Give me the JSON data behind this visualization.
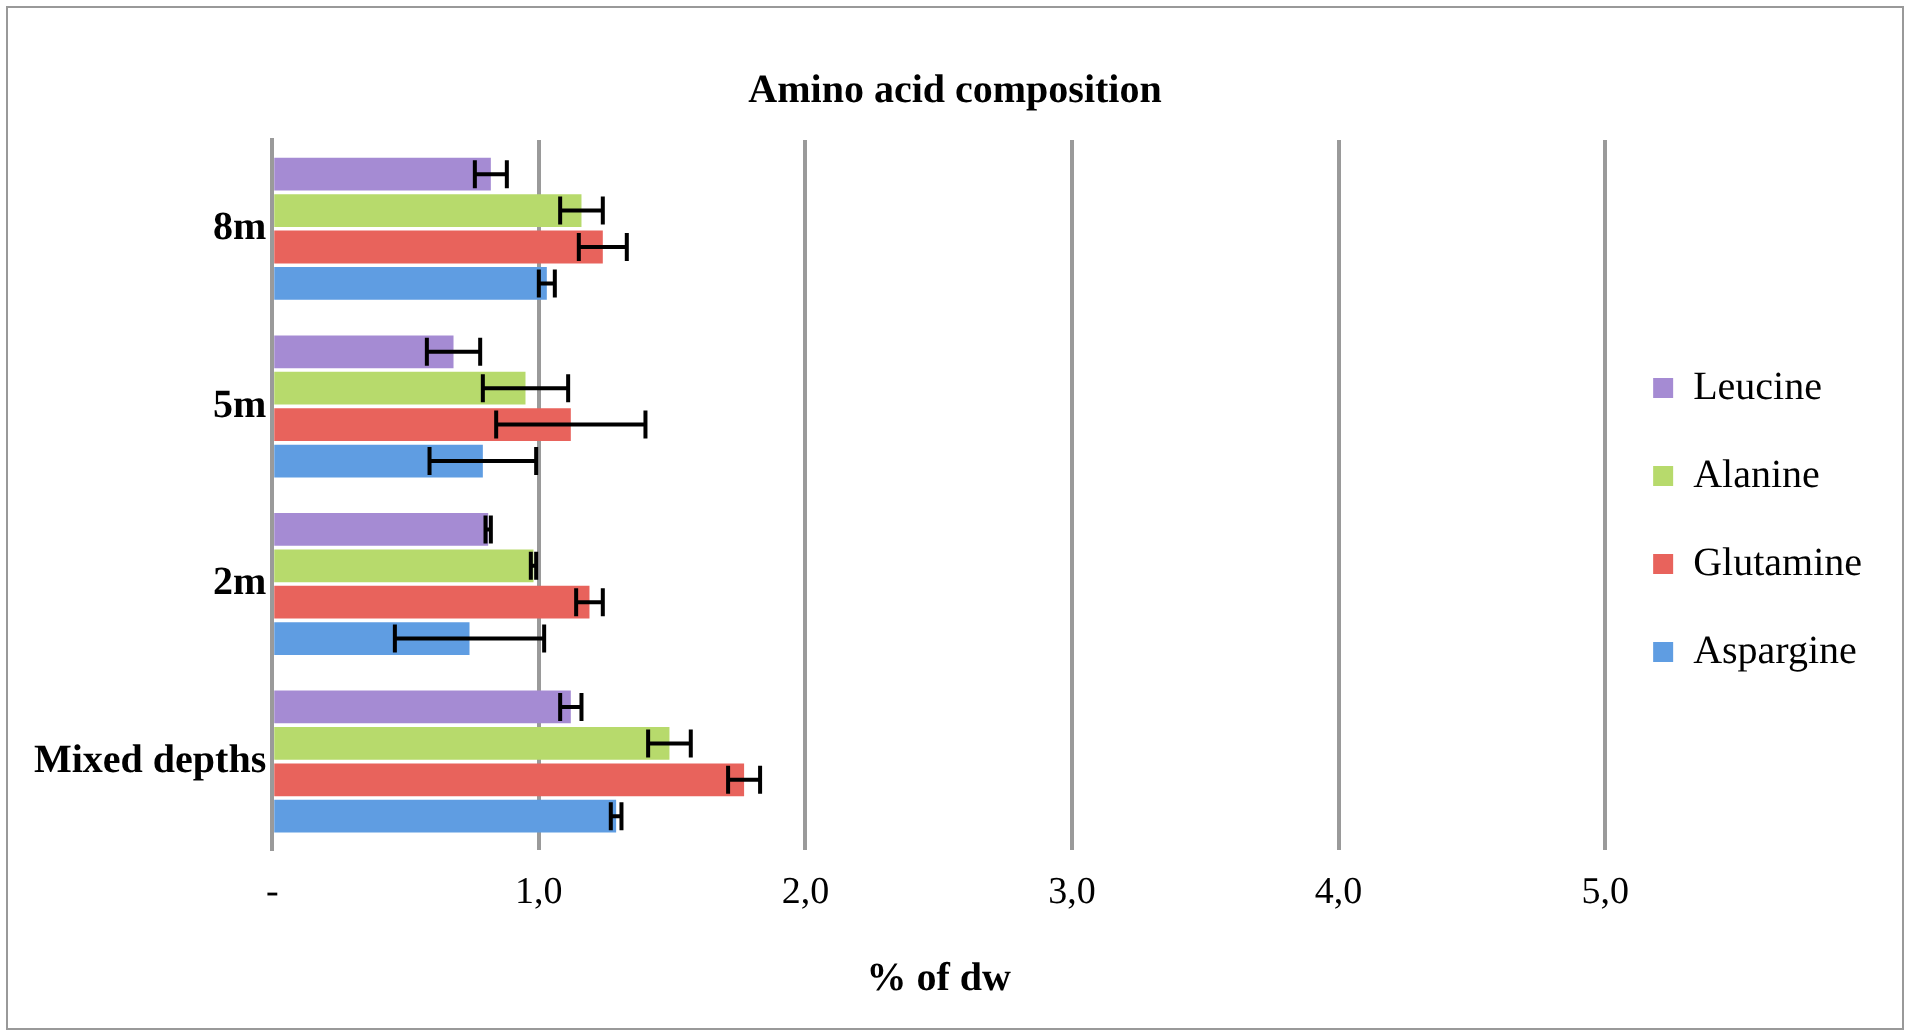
{
  "chart_data": {
    "type": "bar",
    "orientation": "horizontal",
    "title": "Amino acid composition",
    "xlabel": "% of dw",
    "categories": [
      "8m",
      "5m",
      "2m",
      "Mixed depths"
    ],
    "series": [
      {
        "name": "Leucine",
        "color": "#a58bd3",
        "values": [
          0.82,
          0.68,
          0.81,
          1.12
        ],
        "errors": [
          0.06,
          0.1,
          0.01,
          0.04
        ]
      },
      {
        "name": "Alanine",
        "color": "#b7da6c",
        "values": [
          1.16,
          0.95,
          0.98,
          1.49
        ],
        "errors": [
          0.08,
          0.16,
          0.01,
          0.08
        ]
      },
      {
        "name": "Glutamine",
        "color": "#e8635c",
        "values": [
          1.24,
          1.12,
          1.19,
          1.77
        ],
        "errors": [
          0.09,
          0.28,
          0.05,
          0.06
        ]
      },
      {
        "name": "Aspargine",
        "color": "#5f9de2",
        "values": [
          1.03,
          0.79,
          0.74,
          1.29
        ],
        "errors": [
          0.03,
          0.2,
          0.28,
          0.02
        ]
      }
    ],
    "xlim": [
      0,
      5
    ],
    "xticks": [
      {
        "value": 0,
        "label": "-"
      },
      {
        "value": 1,
        "label": "1,0"
      },
      {
        "value": 2,
        "label": "2,0"
      },
      {
        "value": 3,
        "label": "3,0"
      },
      {
        "value": 4,
        "label": "4,0"
      },
      {
        "value": 5,
        "label": "5,0"
      }
    ],
    "grid": "x",
    "legend": "right"
  }
}
